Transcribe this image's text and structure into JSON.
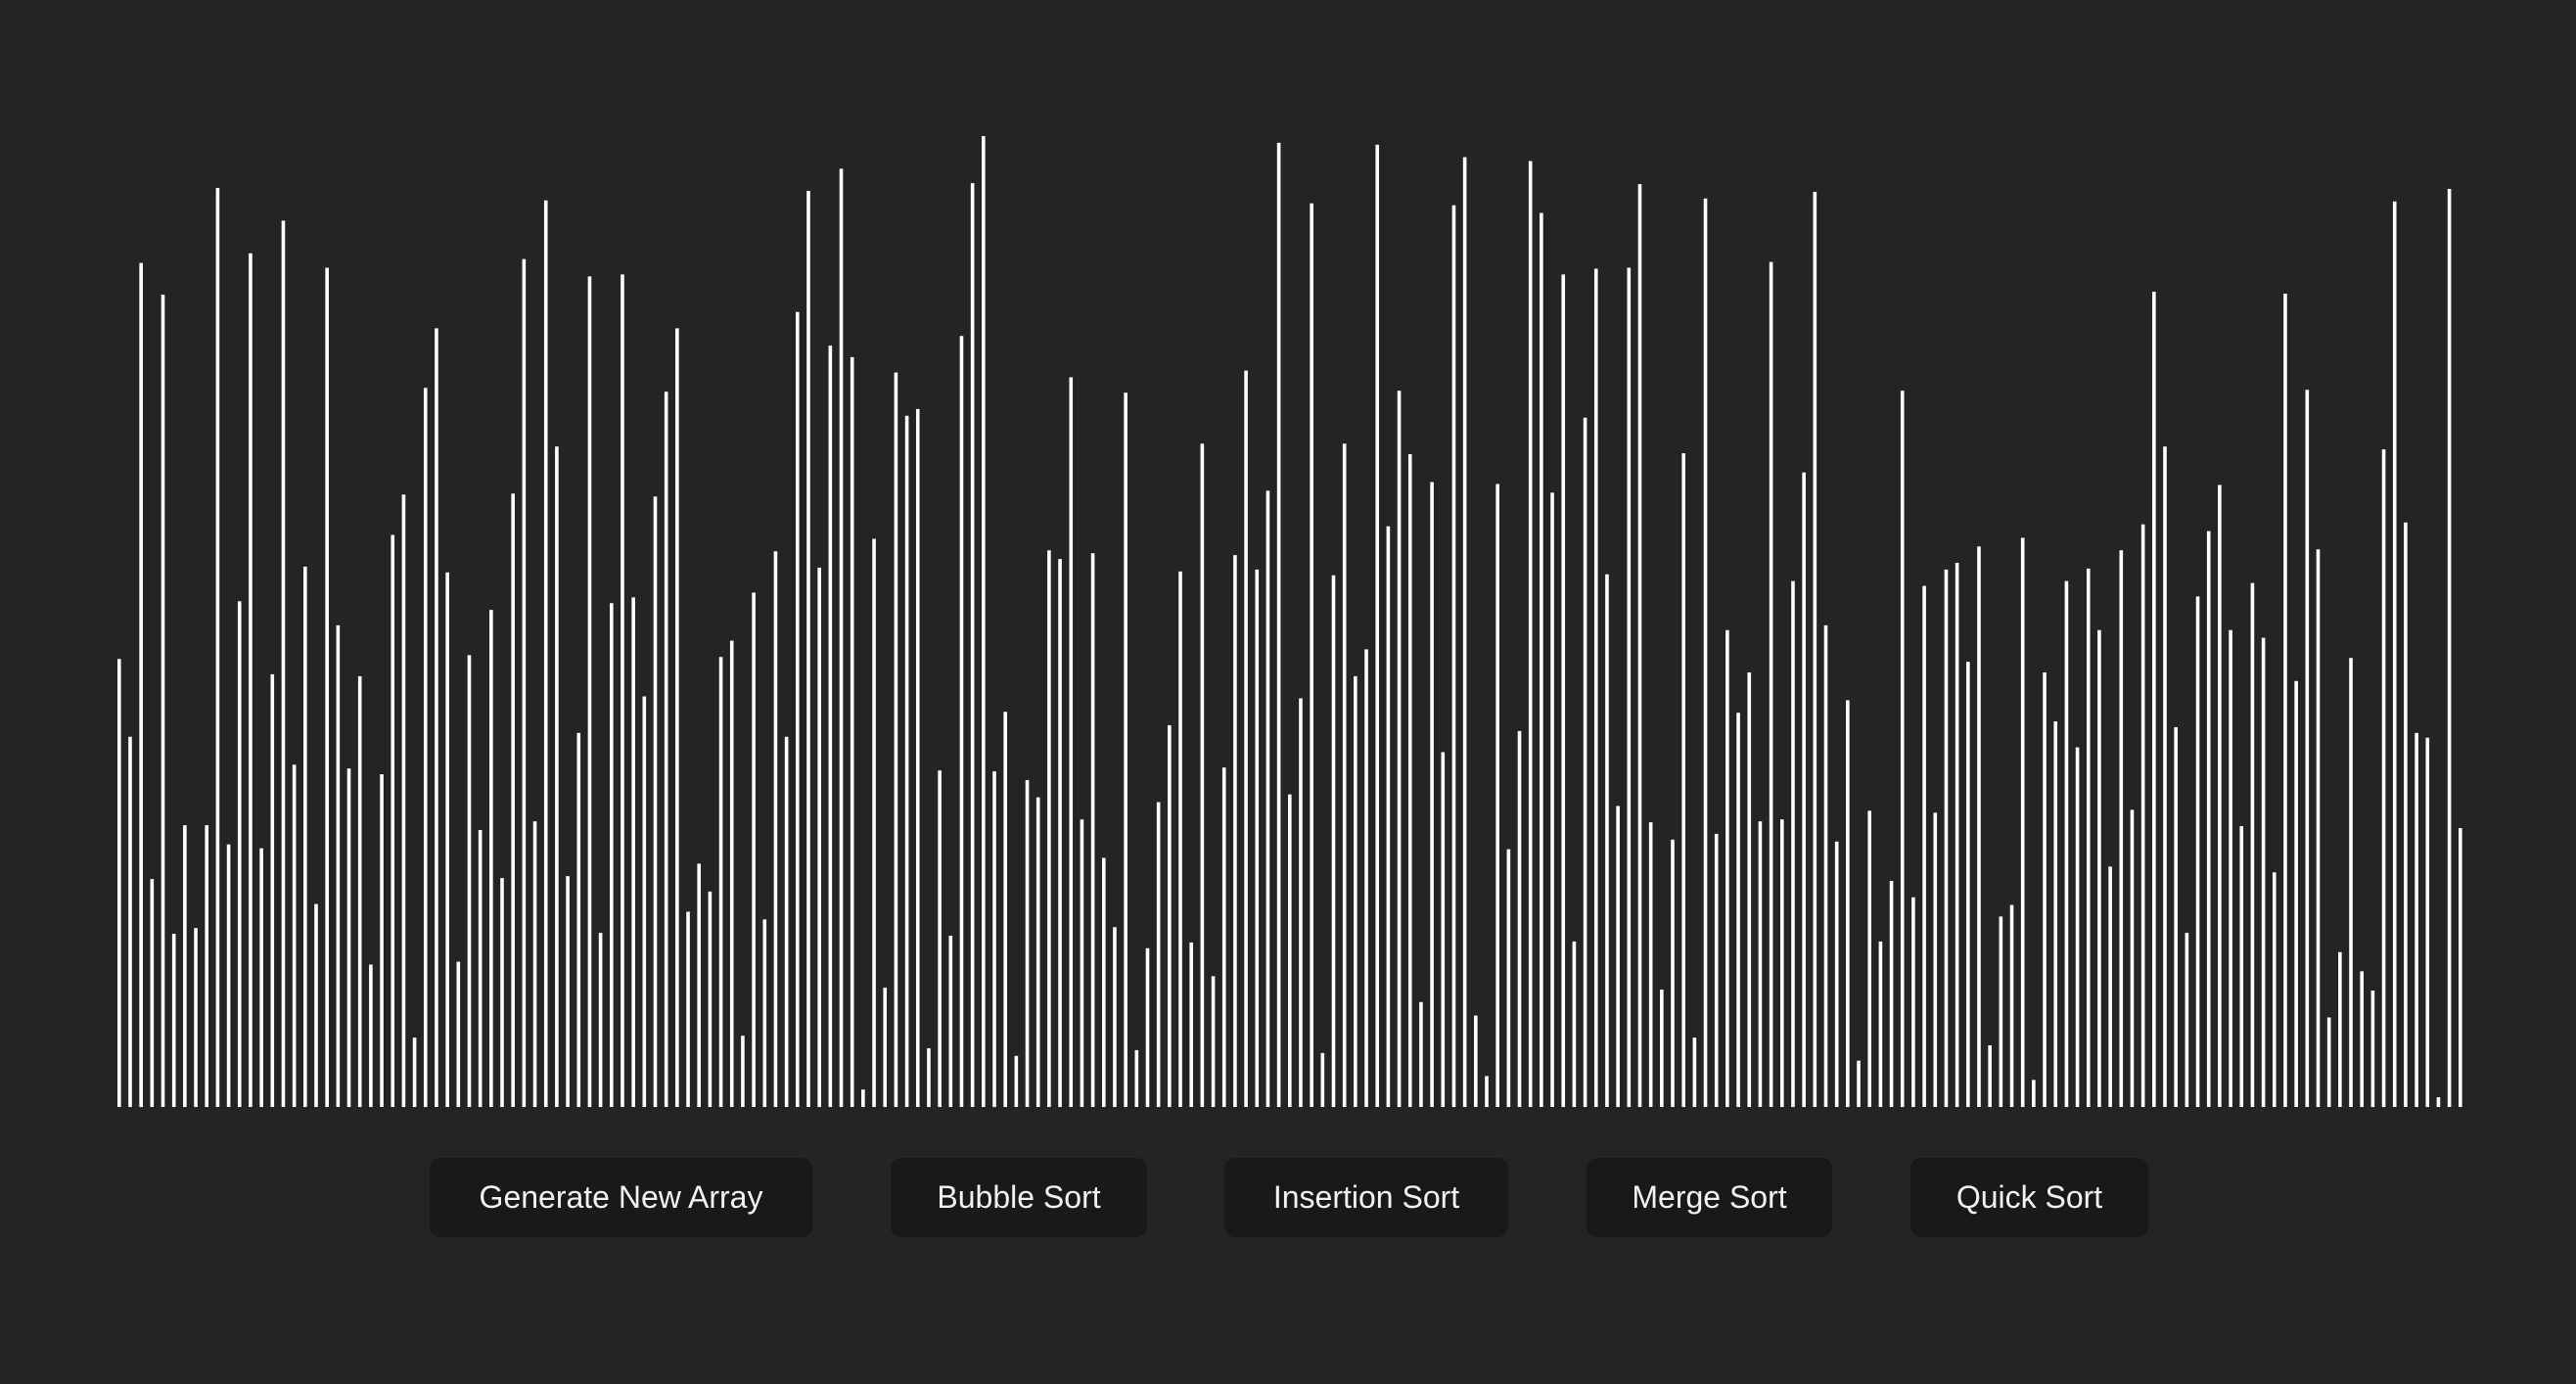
{
  "array": {
    "values": [
      45.6,
      37.5,
      86.8,
      22.7,
      83.5,
      17.0,
      28.3,
      17.6,
      28.3,
      94.6,
      26.3,
      51.6,
      87.8,
      25.9,
      44.0,
      91.2,
      34.6,
      55.2,
      20.1,
      86.3,
      49.1,
      34.2,
      43.8,
      13.8,
      33.6,
      58.5,
      62.7,
      6.2,
      73.8,
      80.0,
      54.6,
      14.1,
      46.0,
      27.8,
      50.7,
      22.8,
      62.8,
      87.2,
      28.7,
      93.3,
      67.7,
      23.0,
      37.9,
      85.4,
      17.1,
      51.4,
      85.6,
      52.0,
      41.7,
      62.5,
      73.4,
      80.0,
      19.3,
      24.3,
      21.4,
      45.8,
      47.5,
      6.4,
      52.5,
      18.5,
      56.8,
      37.5,
      81.7,
      94.3,
      55.1,
      78.2,
      96.6,
      77.0,
      0.8,
      58.1,
      11.4,
      75.4,
      70.9,
      71.6,
      5.1,
      34.0,
      16.8,
      79.2,
      95.1,
      100.0,
      33.9,
      40.1,
      4.3,
      33.0,
      31.2,
      56.9,
      56.0,
      74.9,
      28.9,
      56.6,
      24.9,
      17.7,
      73.3,
      4.9,
      15.5,
      30.7,
      38.7,
      54.7,
      16.1,
      68.0,
      12.6,
      34.3,
      56.4,
      75.6,
      54.9,
      63.1,
      99.3,
      31.5,
      41.5,
      93.0,
      4.6,
      54.3,
      68.0,
      43.8,
      46.6,
      99.1,
      59.4,
      73.5,
      66.9,
      9.9,
      64.0,
      35.9,
      92.8,
      97.8,
      8.5,
      2.2,
      63.8,
      25.8,
      38.1,
      97.4,
      92.0,
      62.9,
      85.6,
      16.2,
      70.7,
      86.2,
      54.4,
      30.3,
      86.3,
      95.0,
      28.6,
      11.2,
      26.8,
      67.0,
      6.2,
      93.5,
      27.4,
      48.6,
      40.0,
      44.2,
      28.7,
      86.9,
      28.9,
      53.7,
      65.0,
      94.2,
      49.1,
      26.6,
      41.3,
      3.8,
      29.8,
      16.2,
      22.5,
      73.5,
      20.8,
      53.2,
      29.6,
      54.9,
      55.6,
      45.3,
      57.3,
      5.4,
      18.8,
      20.0,
      58.2,
      1.8,
      44.2,
      39.1,
      53.7,
      36.4,
      55.0,
      48.6,
      24.0,
      56.9,
      29.9,
      59.6,
      83.8,
      67.7,
      38.5,
      17.1,
      52.1,
      58.9,
      63.7,
      48.6,
      28.2,
      53.5,
      47.8,
      23.4,
      83.6,
      43.3,
      73.6,
      57.0,
      8.3,
      15.1,
      45.7,
      13.1,
      11.1,
      67.4,
      93.2,
      59.8,
      37.9,
      37.4,
      0.0,
      94.5,
      28.0
    ]
  },
  "controls": {
    "generate_label": "Generate New Array",
    "bubble_label": "Bubble Sort",
    "insertion_label": "Insertion Sort",
    "merge_label": "Merge Sort",
    "quick_label": "Quick Sort"
  },
  "colors": {
    "background": "#242424",
    "bar": "#ffffff",
    "button_background": "#191919",
    "button_text": "#f2f2f2"
  }
}
